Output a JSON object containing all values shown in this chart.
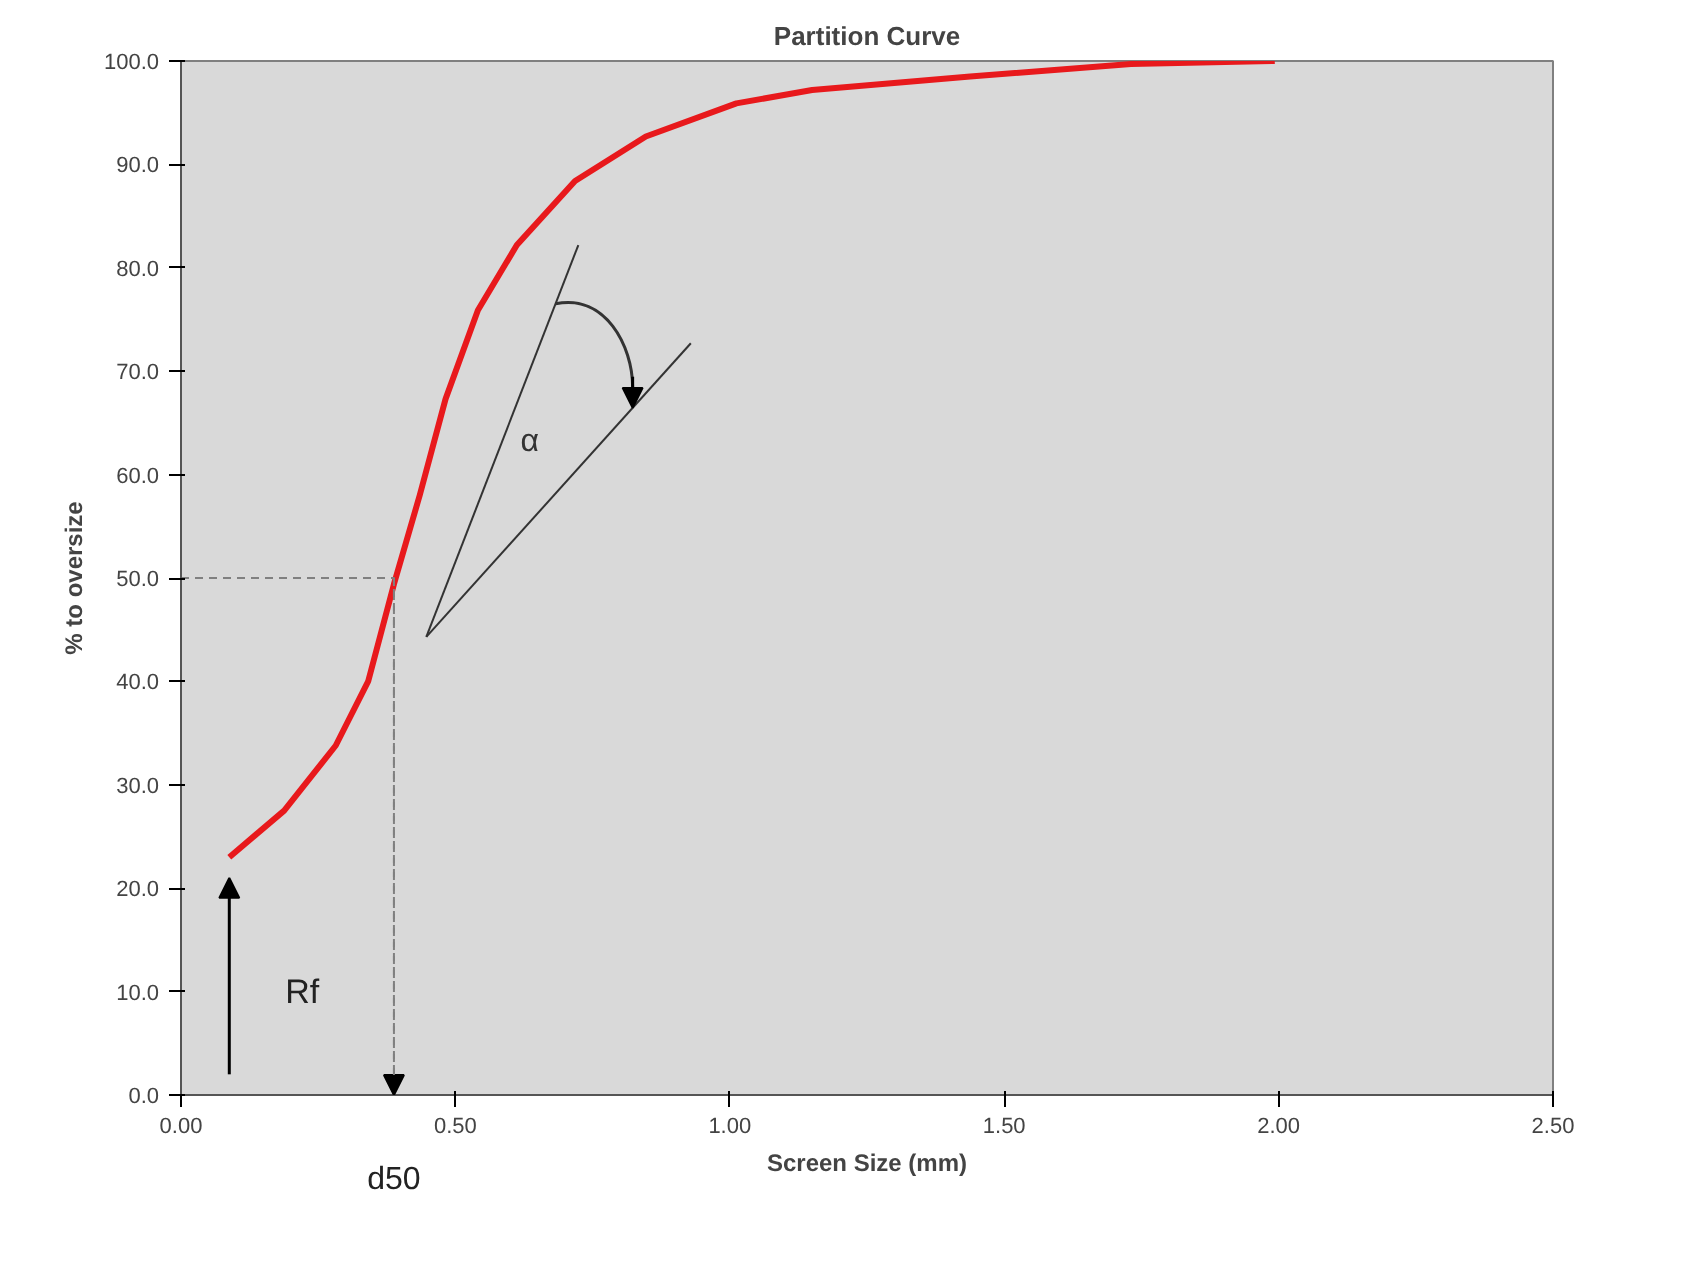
{
  "chart_data": {
    "type": "line",
    "title": "Partition Curve",
    "xlabel": "Screen Size (mm)",
    "ylabel": "% to oversize",
    "series": [
      {
        "color": "#e8191c",
        "x": [
          0.088,
          0.188,
          0.282,
          0.341,
          0.388,
          0.435,
          0.482,
          0.541,
          0.612,
          0.718,
          0.847,
          1.012,
          1.15,
          1.438,
          1.731,
          1.993
        ],
        "values": [
          23.0,
          27.5,
          33.8,
          40.0,
          49.4,
          58.0,
          67.3,
          75.9,
          82.2,
          88.4,
          92.7,
          95.9,
          97.2,
          98.5,
          99.7,
          100.0
        ]
      },
      {
        "color": "#808080",
        "line_style": "dashed",
        "x": [
          0.0,
          0.388,
          0.388
        ],
        "values": [
          50,
          50,
          0
        ]
      },
      {
        "color": "#333333",
        "x": [
          0.447,
          0.724
        ],
        "values": [
          44.3,
          82.2
        ]
      },
      {
        "color": "#333333",
        "x": [
          0.447,
          0.929
        ],
        "values": [
          44.3,
          72.7
        ]
      }
    ],
    "xlim": [
      0,
      2.5
    ],
    "ylim": [
      0,
      100
    ],
    "xticks": [
      {
        "value": 0,
        "label": "0.00"
      },
      {
        "value": 0.5,
        "label": "0.50"
      },
      {
        "value": 1,
        "label": "1.00"
      },
      {
        "value": 1.5,
        "label": "1.50"
      },
      {
        "value": 2,
        "label": "2.00"
      },
      {
        "value": 2.5,
        "label": "2.50"
      }
    ],
    "yticks": [
      {
        "value": 0,
        "label": "0.0"
      },
      {
        "value": 10,
        "label": "10.0"
      },
      {
        "value": 20,
        "label": "20.0"
      },
      {
        "value": 30,
        "label": "30.0"
      },
      {
        "value": 40,
        "label": "40.0"
      },
      {
        "value": 50,
        "label": "50.0"
      },
      {
        "value": 60,
        "label": "60.0"
      },
      {
        "value": 70,
        "label": "70.0"
      },
      {
        "value": 80,
        "label": "80.0"
      },
      {
        "value": 90,
        "label": "90.0"
      },
      {
        "value": 100,
        "label": "100.0"
      }
    ],
    "annotations": [
      "Rf",
      "d50",
      "α"
    ],
    "grid": false,
    "marker": "none",
    "line_style": "solid"
  }
}
